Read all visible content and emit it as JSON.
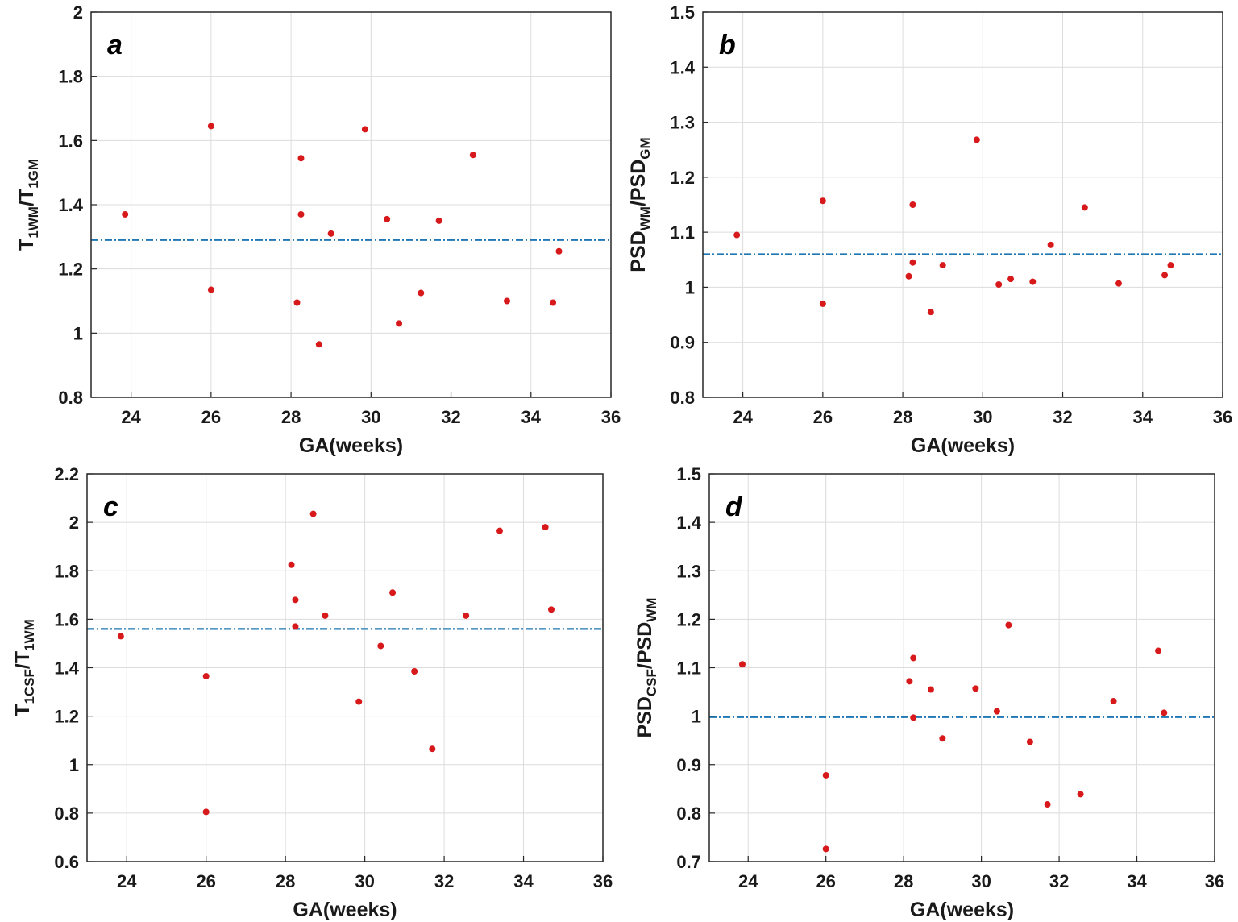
{
  "chart_data": [
    {
      "type": "scatter",
      "panel": "a",
      "xlabel": "GA(weeks)",
      "ylabel": {
        "parts": [
          [
            "T",
            ""
          ],
          [
            "1WM",
            "sub"
          ],
          [
            "/T",
            ""
          ],
          [
            "1GM",
            "sub"
          ]
        ]
      },
      "xlim": [
        23,
        36
      ],
      "ylim": [
        0.8,
        2
      ],
      "xticks": [
        24,
        26,
        28,
        30,
        32,
        34,
        36
      ],
      "yticks": [
        0.8,
        1,
        1.2,
        1.4,
        1.6,
        1.8,
        2
      ],
      "ytick_labels": [
        "0.8",
        "1",
        "1.2",
        "1.4",
        "1.6",
        "1.8",
        "2"
      ],
      "grid": true,
      "mean_line": 1.29,
      "x": [
        23.85,
        26.0,
        26.0,
        28.15,
        28.25,
        28.25,
        28.7,
        29.0,
        29.85,
        30.4,
        30.7,
        31.25,
        31.7,
        32.55,
        33.4,
        34.55,
        34.7
      ],
      "y": [
        1.37,
        1.645,
        1.135,
        1.095,
        1.545,
        1.37,
        0.965,
        1.31,
        1.635,
        1.355,
        1.03,
        1.125,
        1.35,
        1.555,
        1.1,
        1.095,
        1.255
      ]
    },
    {
      "type": "scatter",
      "panel": "b",
      "xlabel": "GA(weeks)",
      "ylabel": {
        "parts": [
          [
            "PSD",
            ""
          ],
          [
            "WM",
            "sub"
          ],
          [
            "/PSD",
            ""
          ],
          [
            "GM",
            "sub"
          ]
        ]
      },
      "xlim": [
        23,
        36
      ],
      "ylim": [
        0.8,
        1.5
      ],
      "xticks": [
        24,
        26,
        28,
        30,
        32,
        34,
        36
      ],
      "yticks": [
        0.8,
        0.9,
        1,
        1.1,
        1.2,
        1.3,
        1.4,
        1.5
      ],
      "ytick_labels": [
        "0.8",
        "0.9",
        "1",
        "1.1",
        "1.2",
        "1.3",
        "1.4",
        "1.5"
      ],
      "grid": true,
      "mean_line": 1.06,
      "x": [
        23.85,
        26.0,
        26.0,
        28.15,
        28.25,
        28.25,
        28.7,
        29.0,
        29.85,
        30.4,
        30.7,
        31.25,
        31.7,
        32.55,
        33.4,
        34.55,
        34.7
      ],
      "y": [
        1.095,
        1.157,
        0.97,
        1.02,
        1.15,
        1.045,
        0.955,
        1.04,
        1.268,
        1.005,
        1.015,
        1.01,
        1.077,
        1.145,
        1.007,
        1.022,
        1.04
      ]
    },
    {
      "type": "scatter",
      "panel": "c",
      "xlabel": "GA(weeks)",
      "ylabel": {
        "parts": [
          [
            "T",
            ""
          ],
          [
            "1CSF",
            "sub"
          ],
          [
            "/T",
            ""
          ],
          [
            "1WM",
            "sub"
          ]
        ]
      },
      "xlim": [
        23,
        36
      ],
      "ylim": [
        0.6,
        2.2
      ],
      "xticks": [
        24,
        26,
        28,
        30,
        32,
        34,
        36
      ],
      "yticks": [
        0.6,
        0.8,
        1,
        1.2,
        1.4,
        1.6,
        1.8,
        2,
        2.2
      ],
      "ytick_labels": [
        "0.6",
        "0.8",
        "1",
        "1.2",
        "1.4",
        "1.6",
        "1.8",
        "2",
        "2.2"
      ],
      "grid": true,
      "mean_line": 1.56,
      "x": [
        23.85,
        26.0,
        26.0,
        28.15,
        28.25,
        28.25,
        28.7,
        29.0,
        29.85,
        30.4,
        30.7,
        31.25,
        31.7,
        32.55,
        33.4,
        34.55,
        34.7
      ],
      "y": [
        1.53,
        1.365,
        0.805,
        1.825,
        1.68,
        1.57,
        2.035,
        1.615,
        1.26,
        1.49,
        1.71,
        1.385,
        1.065,
        1.615,
        1.965,
        1.98,
        1.64
      ]
    },
    {
      "type": "scatter",
      "panel": "d",
      "xlabel": "GA(weeks)",
      "ylabel": {
        "parts": [
          [
            "PSD",
            ""
          ],
          [
            "CSF",
            "sub"
          ],
          [
            "/PSD",
            ""
          ],
          [
            "WM",
            "sub"
          ]
        ]
      },
      "xlim": [
        23,
        36
      ],
      "ylim": [
        0.7,
        1.5
      ],
      "xticks": [
        24,
        26,
        28,
        30,
        32,
        34,
        36
      ],
      "yticks": [
        0.7,
        0.8,
        0.9,
        1,
        1.1,
        1.2,
        1.3,
        1.4,
        1.5
      ],
      "ytick_labels": [
        "0.7",
        "0.8",
        "0.9",
        "1",
        "1.1",
        "1.2",
        "1.3",
        "1.4",
        "1.5"
      ],
      "grid": true,
      "mean_line": 0.998,
      "x": [
        23.85,
        26.0,
        26.0,
        28.15,
        28.25,
        28.25,
        28.7,
        29.0,
        29.85,
        30.4,
        30.7,
        31.25,
        31.7,
        32.55,
        33.4,
        34.55,
        34.7
      ],
      "y": [
        1.107,
        0.878,
        0.726,
        1.072,
        1.12,
        0.997,
        1.055,
        0.954,
        1.057,
        1.01,
        1.188,
        0.947,
        0.818,
        0.839,
        1.031,
        1.135,
        1.007
      ]
    }
  ],
  "colors": {
    "point": "#d7191c",
    "mean_line": "#1f77b4",
    "frame": "#262626",
    "grid": "#dcdcdc"
  }
}
